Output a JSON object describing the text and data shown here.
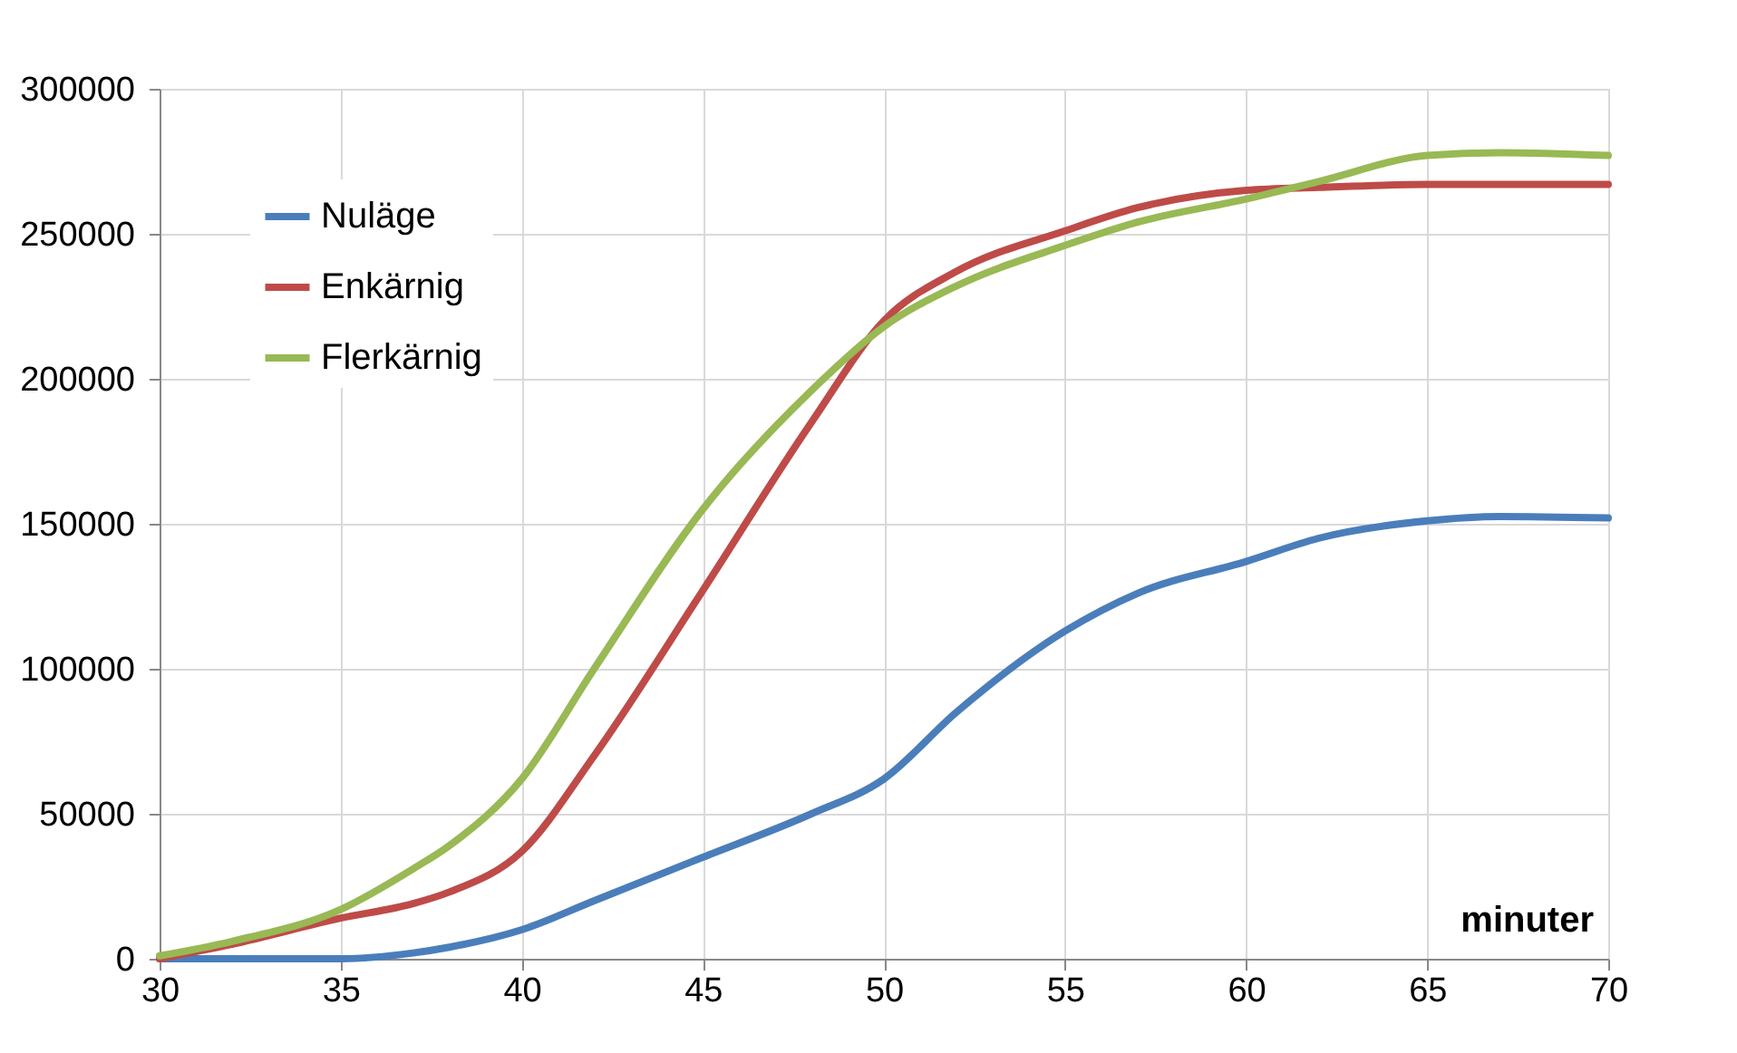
{
  "chart_data": {
    "type": "line",
    "xlabel": "minuter",
    "x": [
      30,
      32,
      35,
      37,
      38,
      40,
      42,
      45,
      48,
      50,
      52,
      55,
      57,
      60,
      62,
      65,
      67,
      70
    ],
    "series": [
      {
        "name": "Nuläge",
        "color": "#4a7ebb",
        "values": [
          0,
          0,
          0,
          2000,
          4000,
          10000,
          20000,
          35000,
          50000,
          62000,
          85000,
          113000,
          126000,
          137000,
          145000,
          151000,
          152500,
          152000
        ]
      },
      {
        "name": "Enkärnig",
        "color": "#be4b48",
        "values": [
          0,
          5000,
          14000,
          19000,
          23000,
          37000,
          70000,
          127000,
          185000,
          220000,
          237000,
          251000,
          259000,
          265000,
          266000,
          267000,
          267000,
          267000
        ]
      },
      {
        "name": "Flerkärnig",
        "color": "#98b954",
        "values": [
          1000,
          6000,
          17000,
          31000,
          39000,
          62000,
          100000,
          155000,
          196000,
          218000,
          232000,
          246000,
          254000,
          262000,
          268000,
          277000,
          278000,
          277000
        ]
      }
    ],
    "xlim": [
      30,
      70
    ],
    "xticks": [
      30,
      35,
      40,
      45,
      50,
      55,
      60,
      65,
      70
    ],
    "ylim": [
      0,
      300000
    ],
    "yticks": [
      0,
      50000,
      100000,
      150000,
      200000,
      250000,
      300000
    ],
    "grid": true,
    "legend": "top left",
    "marker": "none",
    "line_style": "solid"
  }
}
